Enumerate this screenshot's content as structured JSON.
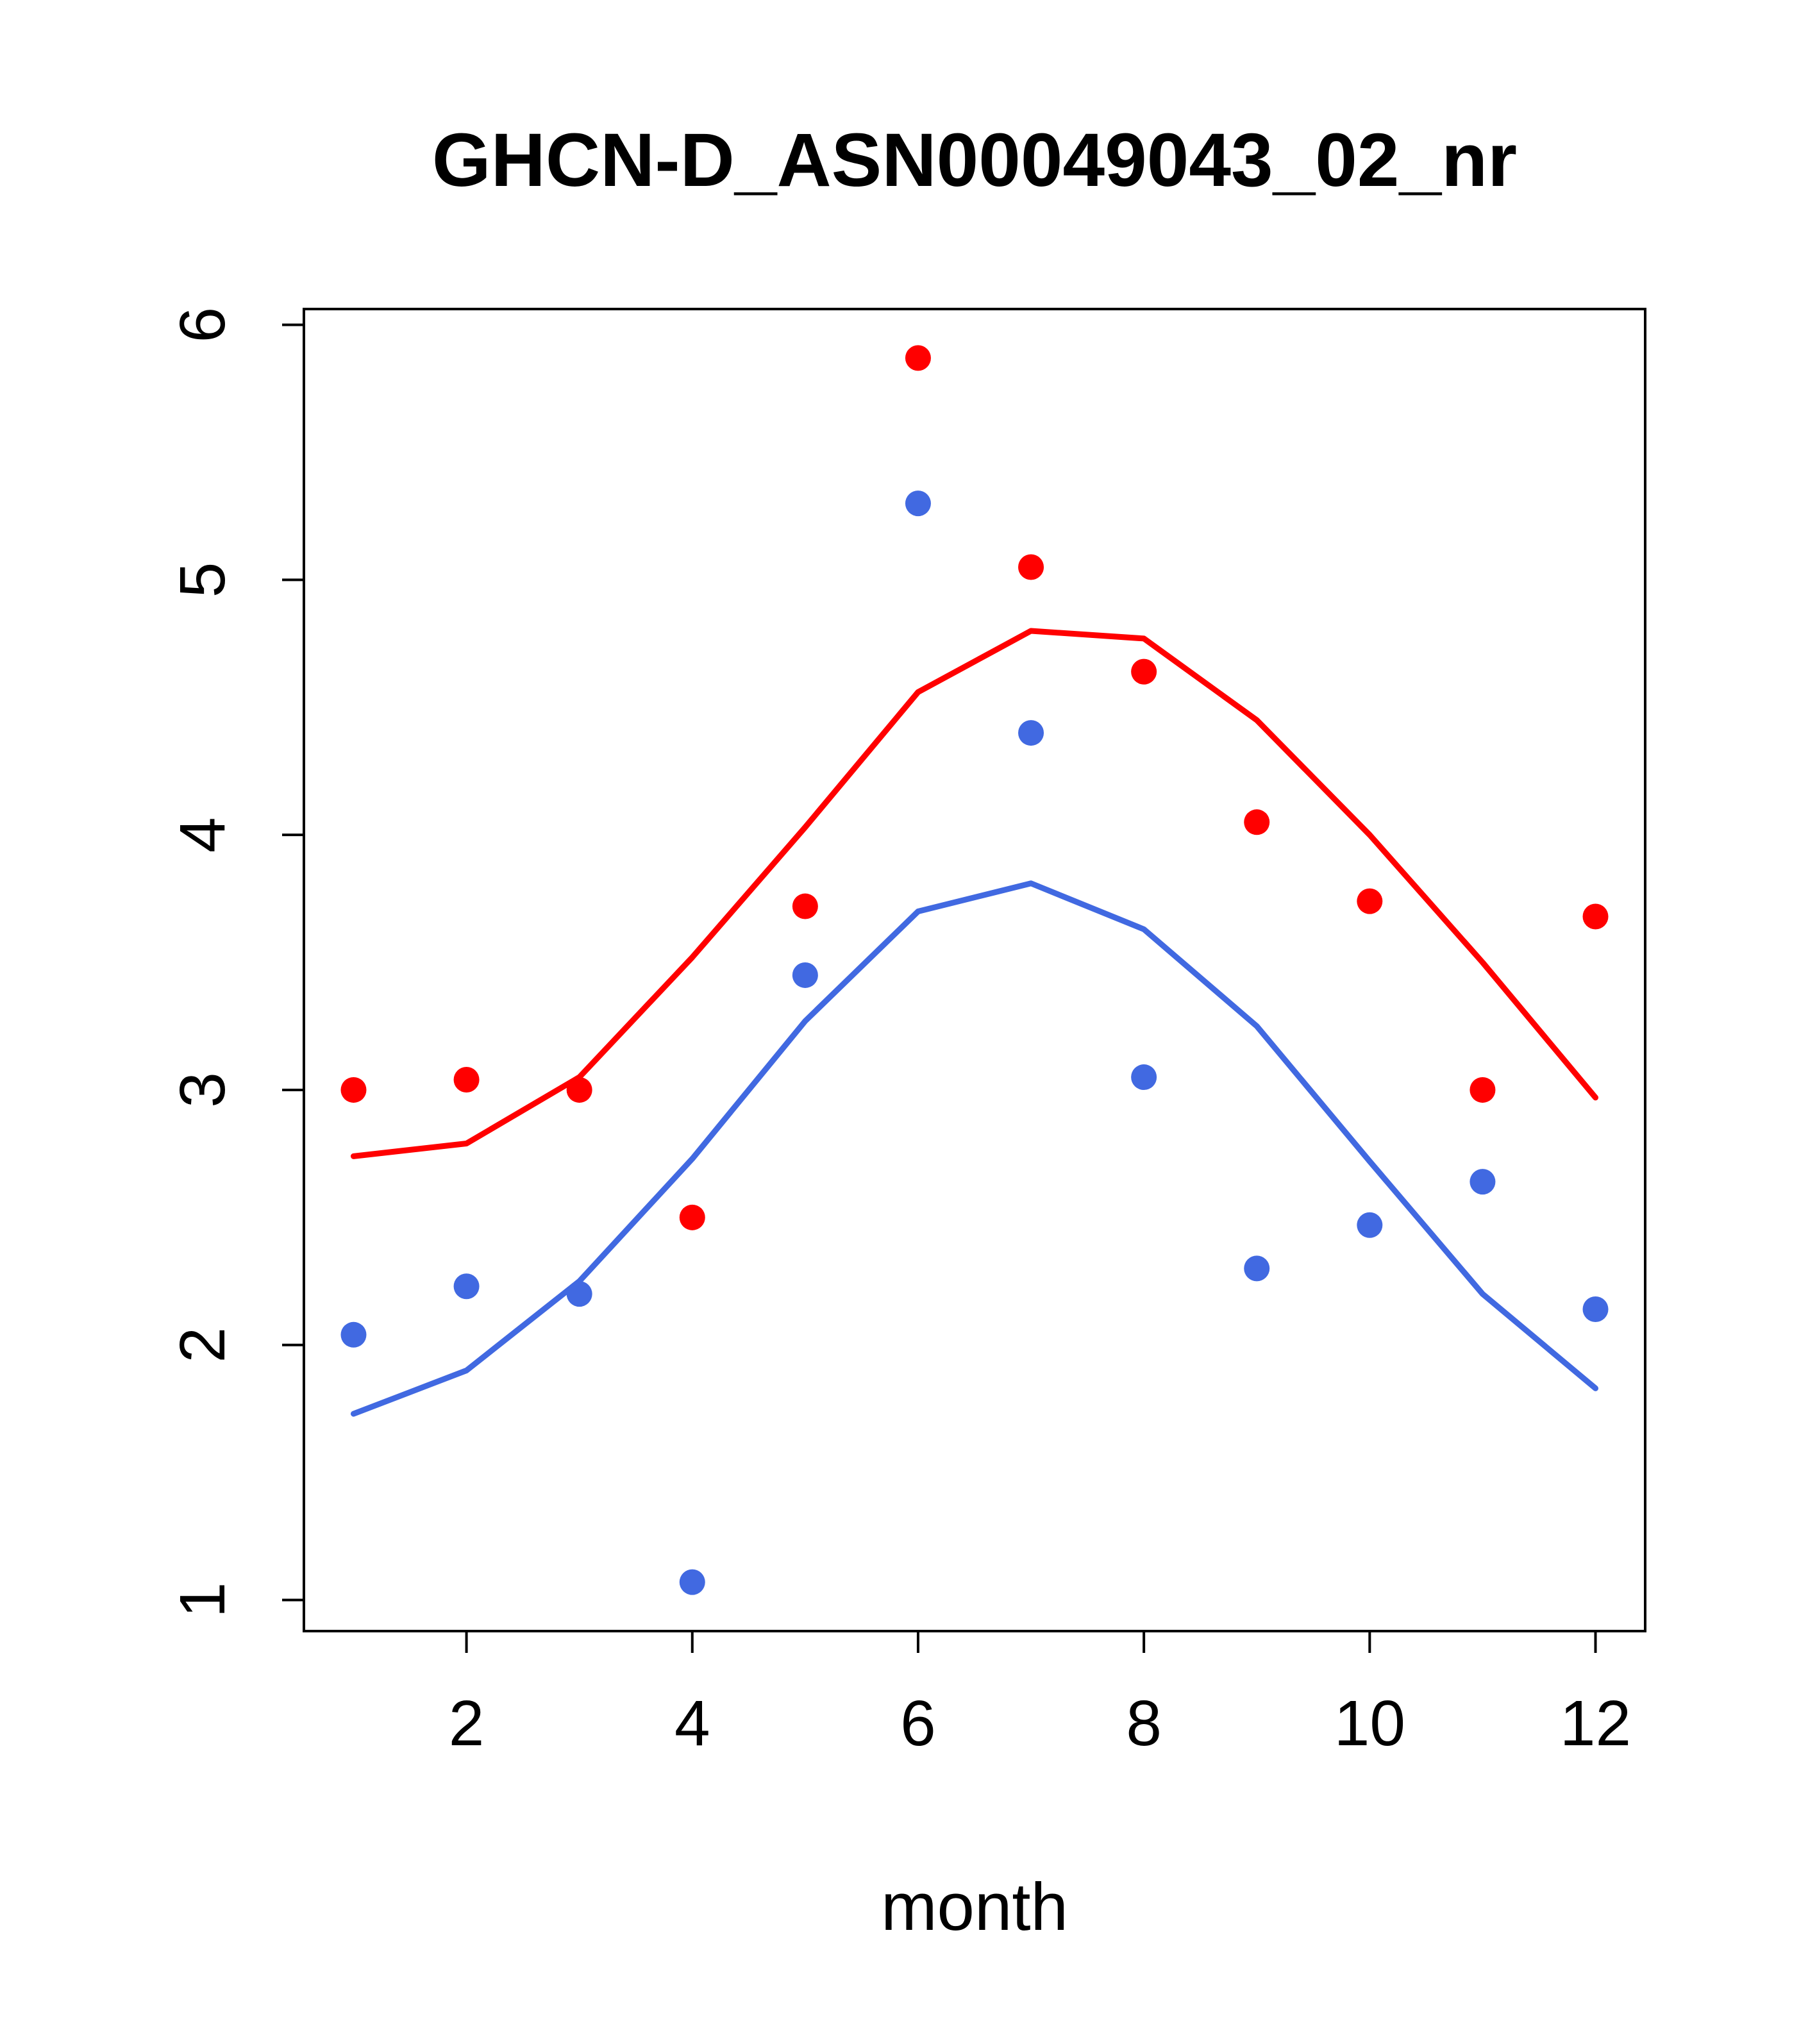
{
  "page": {
    "background": "#ffffff",
    "text_color": "#000000"
  },
  "chart_data": {
    "type": "scatter",
    "title": "GHCN-D_ASN00049043_02_nr",
    "xlabel": "month",
    "ylabel": "",
    "x": [
      1,
      2,
      3,
      4,
      5,
      6,
      7,
      8,
      9,
      10,
      11,
      12
    ],
    "xlim": [
      0.56,
      12.44
    ],
    "ylim": [
      0.878,
      6.062
    ],
    "x_ticks": [
      2,
      4,
      6,
      8,
      10,
      12
    ],
    "y_ticks": [
      1,
      2,
      3,
      4,
      5,
      6
    ],
    "grid": false,
    "legend": "none",
    "colors": {
      "red": "#ff0000",
      "blue": "#4169e1"
    },
    "series": [
      {
        "name": "red-line-smooth",
        "kind": "line",
        "color": "#ff0000",
        "values": [
          2.74,
          2.79,
          3.05,
          3.52,
          4.03,
          4.56,
          4.8,
          4.77,
          4.45,
          4.0,
          3.5,
          2.97
        ]
      },
      {
        "name": "blue-line-smooth",
        "kind": "line",
        "color": "#4169e1",
        "values": [
          1.73,
          1.9,
          2.25,
          2.73,
          3.27,
          3.7,
          3.81,
          3.63,
          3.25,
          2.72,
          2.2,
          1.83
        ]
      },
      {
        "name": "red-points-monthly",
        "kind": "points",
        "color": "#ff0000",
        "values": [
          3.0,
          3.04,
          3.0,
          2.5,
          3.72,
          5.87,
          5.05,
          4.64,
          4.05,
          3.74,
          3.0,
          3.68
        ]
      },
      {
        "name": "blue-points-monthly",
        "kind": "points",
        "color": "#4169e1",
        "values": [
          2.04,
          2.23,
          2.2,
          1.07,
          3.45,
          5.3,
          4.4,
          3.05,
          2.3,
          2.47,
          2.64,
          2.14
        ]
      }
    ]
  }
}
